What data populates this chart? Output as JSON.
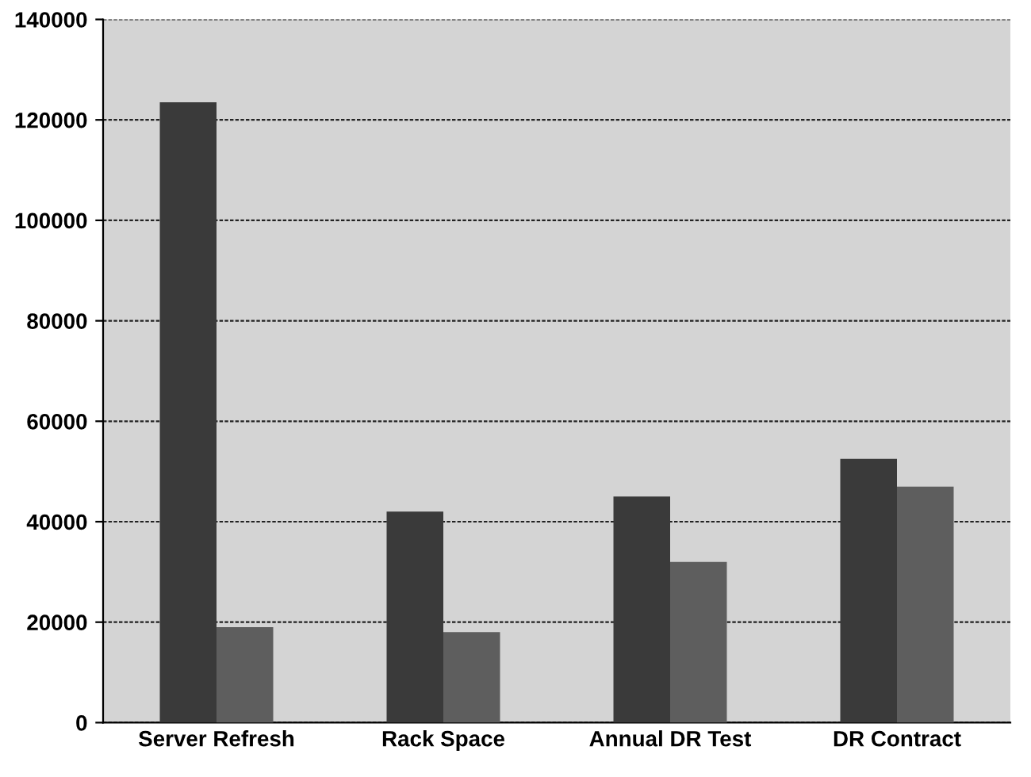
{
  "chart_data": {
    "type": "bar",
    "categories": [
      "Server Refresh",
      "Rack Space",
      "Annual DR Test",
      "DR Contract"
    ],
    "series": [
      {
        "color": "#3a3a3a",
        "values": [
          123500,
          42000,
          45000,
          52500
        ]
      },
      {
        "color": "#5e5e5e",
        "values": [
          19000,
          18000,
          32000,
          47000
        ]
      }
    ],
    "ylim": [
      0,
      140000
    ],
    "yticks": [
      0,
      20000,
      40000,
      60000,
      80000,
      100000,
      120000,
      140000
    ],
    "grid": "y",
    "legend": false
  }
}
